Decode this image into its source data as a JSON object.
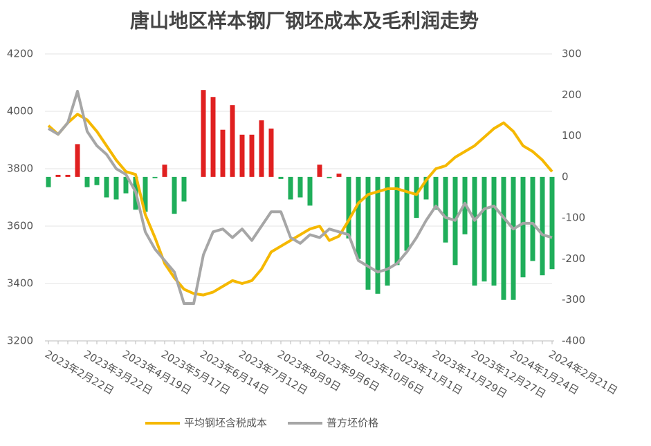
{
  "chart_data": {
    "type": "bar_line",
    "title": "唐山地区样本钢厂钢坯成本及毛利润走势",
    "categories": [
      "2023年2月22日",
      null,
      null,
      null,
      "2023年3月22日",
      null,
      null,
      null,
      "2023年4月19日",
      null,
      null,
      null,
      "2023年5月17日",
      null,
      null,
      null,
      "2023年6月14日",
      null,
      null,
      null,
      "2023年7月12日",
      null,
      null,
      null,
      "2023年8月9日",
      null,
      null,
      null,
      "2023年9月6日",
      null,
      null,
      null,
      "2023年10月6日",
      null,
      null,
      null,
      "2023年11月1日",
      null,
      null,
      null,
      "2023年11月29日",
      null,
      null,
      null,
      "2023年12月27日",
      null,
      null,
      null,
      "2024年1月24日",
      null,
      null,
      null,
      "2024年2月21日"
    ],
    "series": [
      {
        "type": "bar",
        "axis": "y2",
        "positive_color": "#e02020",
        "negative_color": "#1fae5a",
        "values": [
          -25,
          5,
          5,
          80,
          -25,
          -20,
          -50,
          -55,
          -40,
          -80,
          -85,
          -3,
          30,
          -90,
          -60,
          0,
          212,
          195,
          115,
          175,
          103,
          103,
          138,
          118,
          -5,
          -55,
          -50,
          -70,
          30,
          -3,
          8,
          -150,
          -200,
          -275,
          -285,
          -265,
          -215,
          -180,
          -100,
          -55,
          -80,
          -160,
          -215,
          -140,
          -265,
          -255,
          -265,
          -300,
          -300,
          -245,
          -205,
          -240,
          -225
        ]
      },
      {
        "type": "line",
        "name": "平均钢坯含税成本",
        "color": "#f5b800",
        "values": [
          3950,
          3920,
          3960,
          3990,
          3970,
          3930,
          3880,
          3830,
          3790,
          3780,
          3640,
          3560,
          3470,
          3420,
          3380,
          3365,
          3360,
          3370,
          3390,
          3410,
          3400,
          3410,
          3450,
          3510,
          3530,
          3550,
          3570,
          3590,
          3600,
          3550,
          3565,
          3620,
          3680,
          3710,
          3720,
          3730,
          3730,
          3720,
          3710,
          3760,
          3800,
          3810,
          3840,
          3860,
          3880,
          3910,
          3940,
          3960,
          3930,
          3880,
          3860,
          3830,
          3790
        ]
      },
      {
        "type": "line",
        "name": "普方坯价格",
        "color": "#a6a6a6",
        "values": [
          3940,
          3920,
          3960,
          4070,
          3930,
          3880,
          3850,
          3800,
          3780,
          3720,
          3580,
          3520,
          3480,
          3440,
          3330,
          3330,
          3500,
          3580,
          3590,
          3560,
          3590,
          3550,
          3600,
          3650,
          3650,
          3560,
          3540,
          3570,
          3560,
          3590,
          3580,
          3570,
          3480,
          3460,
          3440,
          3450,
          3470,
          3510,
          3560,
          3620,
          3670,
          3630,
          3620,
          3680,
          3620,
          3660,
          3670,
          3630,
          3590,
          3610,
          3610,
          3570,
          3560
        ]
      }
    ],
    "ylim": [
      3200,
      4200
    ],
    "yticks": [
      3200,
      3400,
      3600,
      3800,
      4000,
      4200
    ],
    "y2lim": [
      -400,
      300
    ],
    "y2ticks": [
      -400,
      -300,
      -200,
      -100,
      0,
      100,
      200,
      300
    ],
    "grid": true,
    "legend": "bottom"
  }
}
